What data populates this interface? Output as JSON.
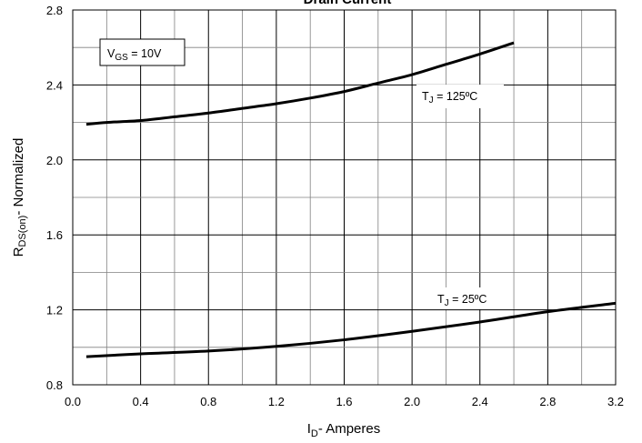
{
  "chart_data": {
    "type": "line",
    "title": "Drain Current",
    "xlabel": "- Amperes",
    "xlabel_symbol": "I",
    "xlabel_sub": "D",
    "ylabel": "- Normalized",
    "ylabel_symbol": "R",
    "ylabel_sub": "DS(on)",
    "xlim": [
      0.0,
      3.2
    ],
    "ylim": [
      0.8,
      2.8
    ],
    "x_ticks": [
      0.0,
      0.4,
      0.8,
      1.2,
      1.6,
      2.0,
      2.4,
      2.8,
      3.2
    ],
    "x_tick_labels": [
      "0.0",
      "0.4",
      "0.8",
      "1.2",
      "1.6",
      "2.0",
      "2.4",
      "2.8",
      "3.2"
    ],
    "y_ticks": [
      0.8,
      1.2,
      1.6,
      2.0,
      2.4,
      2.8
    ],
    "y_tick_labels": [
      "0.8",
      "1.2",
      "1.6",
      "2.0",
      "2.4",
      "2.8"
    ],
    "grid": true,
    "series": [
      {
        "name": "TJ = 125ºC",
        "label_sym": "T",
        "label_sub": "J",
        "label_rest": " = 125ºC",
        "color": "#000000",
        "x": [
          0.08,
          0.2,
          0.4,
          0.6,
          0.8,
          1.0,
          1.2,
          1.4,
          1.6,
          1.8,
          2.0,
          2.2,
          2.4,
          2.6
        ],
        "y": [
          2.19,
          2.2,
          2.21,
          2.23,
          2.25,
          2.275,
          2.3,
          2.33,
          2.365,
          2.41,
          2.455,
          2.51,
          2.565,
          2.625
        ]
      },
      {
        "name": "TJ = 25ºC",
        "label_sym": "T",
        "label_sub": "J",
        "label_rest": " = 25ºC",
        "color": "#000000",
        "x": [
          0.08,
          0.4,
          0.8,
          1.2,
          1.6,
          2.0,
          2.4,
          2.8,
          3.2
        ],
        "y": [
          0.95,
          0.965,
          0.98,
          1.005,
          1.04,
          1.085,
          1.135,
          1.19,
          1.235
        ]
      }
    ],
    "annotation": {
      "symbol": "V",
      "sub": "GS",
      "rest": " = 10V"
    }
  }
}
